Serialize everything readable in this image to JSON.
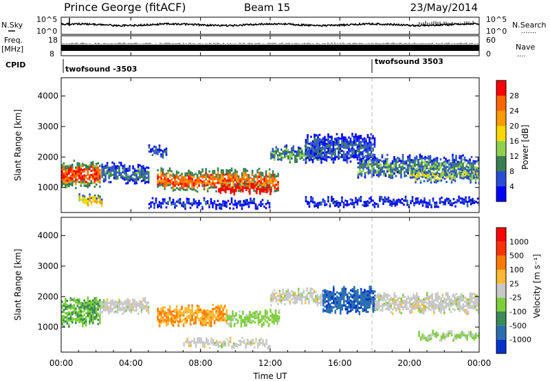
{
  "header": {
    "radar": "Prince George (fitACF)",
    "beam": "Beam 15",
    "date": "23/May/2014"
  },
  "strip_panels": {
    "noise": {
      "left_label": "N.Sky",
      "right_label": "N.Search",
      "right_marker": ".......",
      "ticks": [
        "10^5",
        "10^0"
      ]
    },
    "freq": {
      "left_label_1": "Freq.",
      "left_label_2": "[MHz]",
      "left_ticks": [
        "18",
        "8"
      ],
      "right_label": "Nave",
      "right_marker": "....",
      "right_ticks": [
        "60",
        "0"
      ]
    },
    "cpid": {
      "label": "CPID",
      "programs": [
        {
          "name": "twofsound -3503",
          "start_hour": 0
        },
        {
          "name": "twofsound 3503",
          "start_hour": 18
        }
      ]
    }
  },
  "time_axis": {
    "label": "Time UT",
    "ticks": [
      "00:00",
      "04:00",
      "08:00",
      "12:00",
      "16:00",
      "20:00",
      "00:00"
    ]
  },
  "power_colorbar": {
    "label": "Power [dB]",
    "ticks": [
      "4",
      "8",
      "12",
      "16",
      "20",
      "24",
      "28"
    ],
    "colors": [
      "#0000ff",
      "#2a4fd6",
      "#3a7f52",
      "#8fd14f",
      "#ffd700",
      "#ff9a00",
      "#ff6600",
      "#ff0000"
    ]
  },
  "velocity_colorbar": {
    "label": "Velocity [m s⁻¹]",
    "ticks": [
      "1000",
      "500",
      "100",
      "25",
      "-25",
      "-100",
      "-500",
      "-1000"
    ],
    "colors": [
      "#0033cc",
      "#2a6fb0",
      "#3a8a5a",
      "#7ccf3a",
      "#c8c8c8",
      "#ffb830",
      "#ff7a00",
      "#ff3300",
      "#ff0000"
    ]
  },
  "chart_data": [
    {
      "type": "heatmap",
      "title": "",
      "xlabel": "Time UT",
      "ylabel": "Slant Range [km]",
      "xlim": [
        0,
        24
      ],
      "ylim": [
        180,
        4600
      ],
      "yticks": [
        "1000",
        "2000",
        "3000",
        "4000"
      ],
      "quantity": "Power [dB]",
      "vrange": [
        0,
        30
      ],
      "echo_bands": [
        {
          "t_start": 0.0,
          "t_end": 2.2,
          "range_center": 1450,
          "range_width": 700,
          "value": 26
        },
        {
          "t_start": 1.0,
          "t_end": 2.3,
          "range_center": 600,
          "range_width": 250,
          "value": 18
        },
        {
          "t_start": 2.3,
          "t_end": 5.0,
          "range_center": 1500,
          "range_width": 500,
          "value": 8
        },
        {
          "t_start": 5.0,
          "t_end": 6.0,
          "range_center": 2200,
          "range_width": 250,
          "value": 6
        },
        {
          "t_start": 5.5,
          "t_end": 12.5,
          "range_center": 1250,
          "range_width": 600,
          "value": 24
        },
        {
          "t_start": 9.0,
          "t_end": 12.0,
          "range_center": 1000,
          "range_width": 250,
          "value": 29
        },
        {
          "t_start": 5.0,
          "t_end": 12.0,
          "range_center": 500,
          "range_width": 150,
          "value": 6
        },
        {
          "t_start": 12.0,
          "t_end": 15.0,
          "range_center": 2100,
          "range_width": 400,
          "value": 10
        },
        {
          "t_start": 14.0,
          "t_end": 18.0,
          "range_center": 2300,
          "range_width": 800,
          "value": 6
        },
        {
          "t_start": 14.0,
          "t_end": 24.0,
          "range_center": 550,
          "range_width": 150,
          "value": 6
        },
        {
          "t_start": 17.0,
          "t_end": 24.0,
          "range_center": 1700,
          "range_width": 600,
          "value": 10
        },
        {
          "t_start": 20.0,
          "t_end": 24.0,
          "range_center": 1400,
          "range_width": 300,
          "value": 14
        }
      ]
    },
    {
      "type": "heatmap",
      "title": "",
      "xlabel": "Time UT",
      "ylabel": "Slant Range [km]",
      "xlim": [
        0,
        24
      ],
      "ylim": [
        180,
        4600
      ],
      "yticks": [
        "1000",
        "2000",
        "3000",
        "4000"
      ],
      "quantity": "Velocity [m s⁻¹]",
      "vrange": [
        -1000,
        1000
      ],
      "echo_bands": [
        {
          "t_start": 0.0,
          "t_end": 2.2,
          "range_center": 1500,
          "range_width": 800,
          "value": -300
        },
        {
          "t_start": 2.2,
          "t_end": 5.0,
          "range_center": 1700,
          "range_width": 400,
          "value": 0
        },
        {
          "t_start": 5.5,
          "t_end": 9.5,
          "range_center": 1400,
          "range_width": 500,
          "value": 300
        },
        {
          "t_start": 9.5,
          "t_end": 12.5,
          "range_center": 1300,
          "range_width": 400,
          "value": -200
        },
        {
          "t_start": 7.0,
          "t_end": 12.0,
          "range_center": 500,
          "range_width": 150,
          "value": 0
        },
        {
          "t_start": 12.0,
          "t_end": 15.0,
          "range_center": 2000,
          "range_width": 400,
          "value": 0
        },
        {
          "t_start": 15.0,
          "t_end": 18.0,
          "range_center": 1900,
          "range_width": 700,
          "value": -700
        },
        {
          "t_start": 18.0,
          "t_end": 24.0,
          "range_center": 1800,
          "range_width": 500,
          "value": 0
        },
        {
          "t_start": 20.5,
          "t_end": 24.0,
          "range_center": 700,
          "range_width": 200,
          "value": -150
        }
      ]
    }
  ]
}
